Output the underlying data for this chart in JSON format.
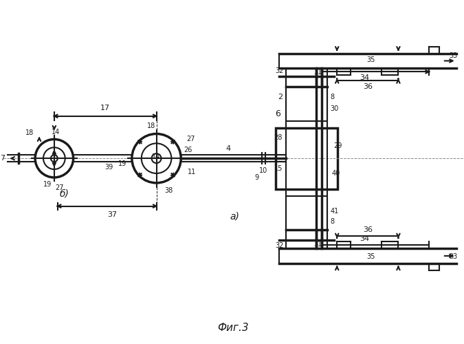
{
  "title": "Фиг.3",
  "bg_color": "#ffffff",
  "line_color": "#1a1a1a",
  "lw": 1.5,
  "lw_thick": 2.5,
  "fig_width": 6.75,
  "fig_height": 5.0
}
